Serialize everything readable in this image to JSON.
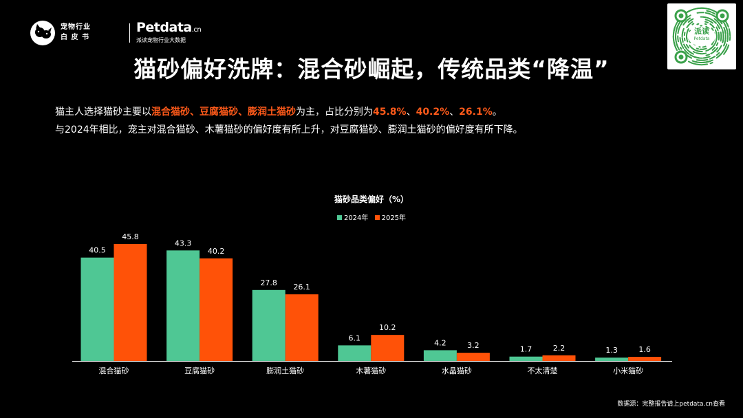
{
  "header": {
    "whitebook_line1": "宠物行业",
    "whitebook_line2": "白 皮 书",
    "brand": "Petdata",
    "brand_tld": ".cn",
    "brand_sub": "派读宠物行业大数据",
    "qr_label": "派读",
    "qr_sublabel": "Petdata"
  },
  "title": "猫砂偏好洗牌：混合砂崛起，传统品类“降温”",
  "intro": {
    "line1_prefix": "猫主人选择猫砂主要以",
    "line1_highlight": "混合猫砂、豆腐猫砂、膨润土猫砂",
    "line1_mid": "为主，占比分别为",
    "pct1": "45.8%",
    "sep1": "、",
    "pct2": "40.2%",
    "sep2": "、",
    "pct3": "26.1%",
    "line1_end": "。",
    "line2": "与2024年相比，宠主对混合猫砂、木薯猫砂的偏好度有所上升，对豆腐猫砂、膨润土猫砂的偏好度有所下降。"
  },
  "colors": {
    "series_2024": "#4fc794",
    "series_2025": "#ff5208",
    "highlight": "#ff5a1a",
    "qr_green": "#3aa14a"
  },
  "chart_data": {
    "type": "bar",
    "title": "猫砂品类偏好（%）",
    "categories": [
      "混合猫砂",
      "豆腐猫砂",
      "膨润土猫砂",
      "木薯猫砂",
      "水晶猫砂",
      "不太清楚",
      "小米猫砂"
    ],
    "series": [
      {
        "name": "2024年",
        "values": [
          40.5,
          43.3,
          27.8,
          6.1,
          4.2,
          1.7,
          1.3
        ]
      },
      {
        "name": "2025年",
        "values": [
          45.8,
          40.2,
          26.1,
          10.2,
          3.2,
          2.2,
          1.6
        ]
      }
    ],
    "ylim": [
      0,
      45.8
    ],
    "legend": "top-center",
    "grid": false,
    "data_labels": true
  },
  "source": "数据源：完整报告请上petdata.cn查看"
}
